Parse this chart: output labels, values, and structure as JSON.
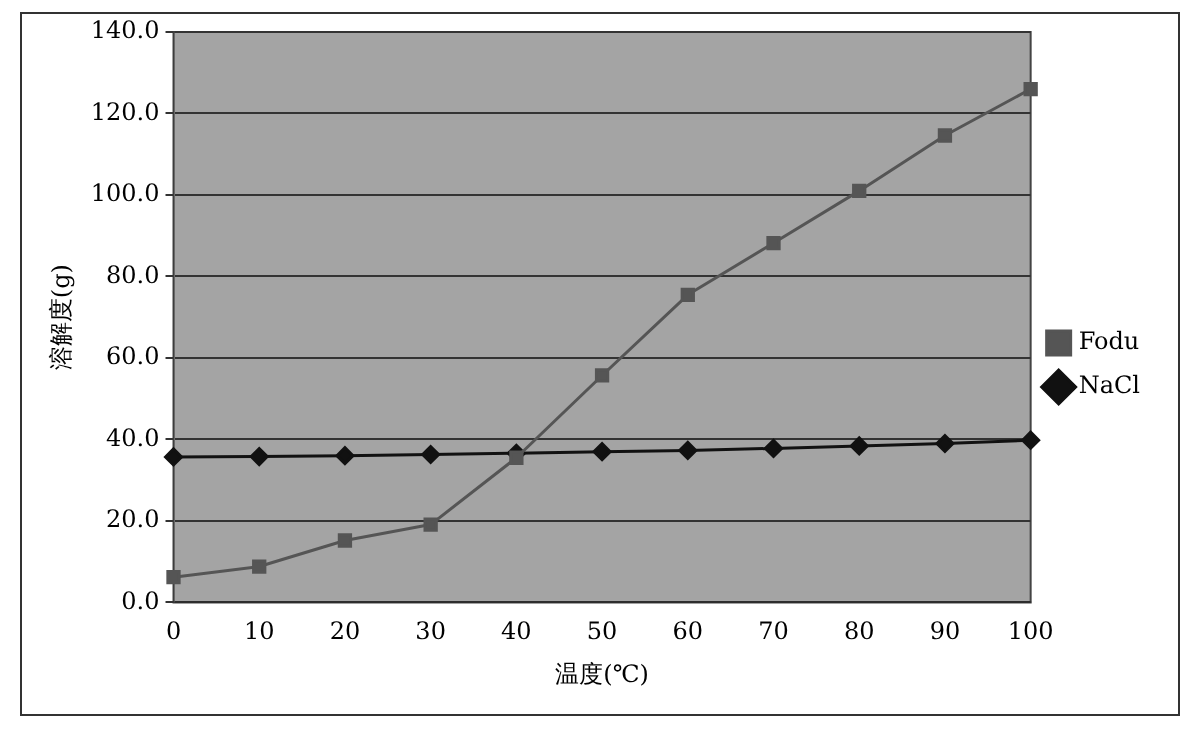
{
  "chart_data": {
    "type": "line",
    "xlabel": "温度(℃)",
    "ylabel": "溶解度(g)",
    "categories": [
      "0",
      "10",
      "20",
      "30",
      "40",
      "50",
      "60",
      "70",
      "80",
      "90",
      "100"
    ],
    "series": [
      {
        "name": "NaCl",
        "color": "#111111",
        "marker": "diamond",
        "values": [
          35.7,
          35.8,
          36.0,
          36.3,
          36.6,
          37.0,
          37.3,
          37.8,
          38.4,
          39.0,
          39.8
        ]
      },
      {
        "name": "Fodu",
        "color": "#555555",
        "marker": "square",
        "values": [
          6.2,
          8.8,
          15.2,
          19.1,
          35.5,
          55.7,
          75.5,
          88.2,
          101,
          114.6,
          126
        ]
      }
    ],
    "ylim": [
      0,
      140
    ],
    "yticks": [
      {
        "value": 0,
        "label": "0.0"
      },
      {
        "value": 20,
        "label": "20.0"
      },
      {
        "value": 40,
        "label": "40.0"
      },
      {
        "value": 60,
        "label": "60.0"
      },
      {
        "value": 80,
        "label": "80.0"
      },
      {
        "value": 100,
        "label": "100.0"
      },
      {
        "value": 120,
        "label": "120.0"
      },
      {
        "value": 140,
        "label": "140.0"
      }
    ],
    "grid": "y",
    "legend": "right"
  }
}
